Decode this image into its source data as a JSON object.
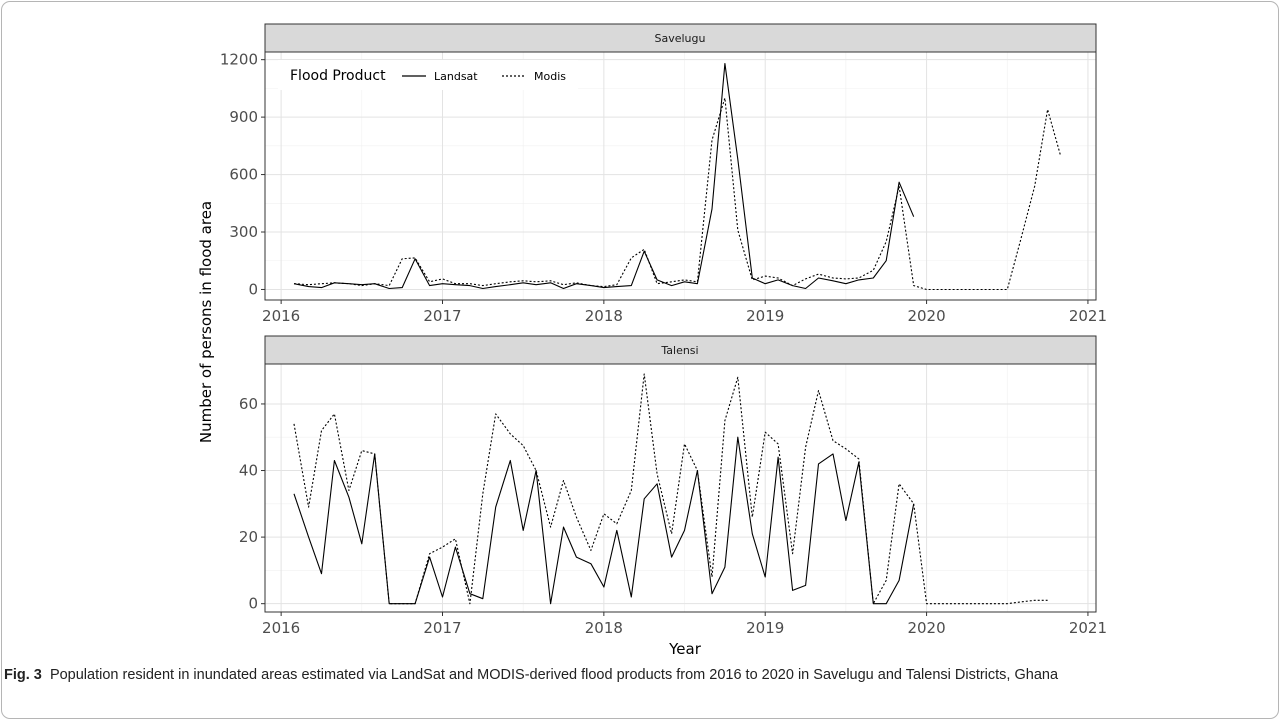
{
  "chart_data": {
    "type": "line",
    "xlabel": "Year",
    "ylabel": "Number of persons in flood area",
    "x_ticks": [
      "2016",
      "2017",
      "2018",
      "2019",
      "2020",
      "2021"
    ],
    "xlim": [
      2015.9,
      2021.05
    ],
    "legend": {
      "title": "Flood Product",
      "placement": "top-left inside first panel",
      "entries": [
        {
          "name": "Landsat",
          "linestyle": "solid"
        },
        {
          "name": "Modis",
          "linestyle": "dotted"
        }
      ]
    },
    "panels": [
      {
        "strip": "Savelugu",
        "ylim": [
          -55,
          1240
        ],
        "y_ticks": [
          0,
          300,
          600,
          900,
          1200
        ],
        "series": [
          {
            "name": "Landsat",
            "style": "solid",
            "points": [
              [
                2016.08,
                30
              ],
              [
                2016.17,
                15
              ],
              [
                2016.25,
                10
              ],
              [
                2016.33,
                35
              ],
              [
                2016.42,
                30
              ],
              [
                2016.5,
                25
              ],
              [
                2016.58,
                30
              ],
              [
                2016.67,
                5
              ],
              [
                2016.75,
                10
              ],
              [
                2016.83,
                160
              ],
              [
                2016.92,
                20
              ],
              [
                2017.0,
                30
              ],
              [
                2017.08,
                25
              ],
              [
                2017.17,
                20
              ],
              [
                2017.25,
                5
              ],
              [
                2017.33,
                15
              ],
              [
                2017.42,
                25
              ],
              [
                2017.5,
                35
              ],
              [
                2017.58,
                25
              ],
              [
                2017.67,
                35
              ],
              [
                2017.75,
                5
              ],
              [
                2017.83,
                30
              ],
              [
                2017.92,
                20
              ],
              [
                2018.0,
                10
              ],
              [
                2018.08,
                15
              ],
              [
                2018.17,
                20
              ],
              [
                2018.25,
                200
              ],
              [
                2018.33,
                50
              ],
              [
                2018.42,
                20
              ],
              [
                2018.5,
                40
              ],
              [
                2018.58,
                30
              ],
              [
                2018.67,
                420
              ],
              [
                2018.75,
                1180
              ],
              [
                2018.83,
                680
              ],
              [
                2018.92,
                60
              ],
              [
                2019.0,
                30
              ],
              [
                2019.08,
                50
              ],
              [
                2019.17,
                20
              ],
              [
                2019.25,
                5
              ],
              [
                2019.33,
                60
              ],
              [
                2019.42,
                45
              ],
              [
                2019.5,
                30
              ],
              [
                2019.58,
                50
              ],
              [
                2019.67,
                60
              ],
              [
                2019.75,
                150
              ],
              [
                2019.83,
                560
              ],
              [
                2019.92,
                380
              ]
            ]
          },
          {
            "name": "Modis",
            "style": "dotted",
            "points": [
              [
                2016.08,
                30
              ],
              [
                2016.17,
                25
              ],
              [
                2016.25,
                30
              ],
              [
                2016.33,
                35
              ],
              [
                2016.42,
                30
              ],
              [
                2016.5,
                20
              ],
              [
                2016.58,
                30
              ],
              [
                2016.67,
                20
              ],
              [
                2016.75,
                160
              ],
              [
                2016.83,
                165
              ],
              [
                2016.92,
                40
              ],
              [
                2017.0,
                55
              ],
              [
                2017.08,
                30
              ],
              [
                2017.17,
                30
              ],
              [
                2017.25,
                20
              ],
              [
                2017.33,
                30
              ],
              [
                2017.42,
                40
              ],
              [
                2017.5,
                45
              ],
              [
                2017.58,
                40
              ],
              [
                2017.67,
                45
              ],
              [
                2017.75,
                25
              ],
              [
                2017.83,
                35
              ],
              [
                2017.92,
                20
              ],
              [
                2018.0,
                15
              ],
              [
                2018.08,
                25
              ],
              [
                2018.17,
                165
              ],
              [
                2018.25,
                210
              ],
              [
                2018.33,
                30
              ],
              [
                2018.42,
                40
              ],
              [
                2018.5,
                50
              ],
              [
                2018.58,
                40
              ],
              [
                2018.67,
                780
              ],
              [
                2018.75,
                1000
              ],
              [
                2018.83,
                310
              ],
              [
                2018.92,
                50
              ],
              [
                2019.0,
                70
              ],
              [
                2019.08,
                60
              ],
              [
                2019.17,
                20
              ],
              [
                2019.25,
                55
              ],
              [
                2019.33,
                80
              ],
              [
                2019.42,
                60
              ],
              [
                2019.5,
                55
              ],
              [
                2019.58,
                60
              ],
              [
                2019.67,
                100
              ],
              [
                2019.75,
                250
              ],
              [
                2019.83,
                540
              ],
              [
                2019.92,
                20
              ],
              [
                2020.0,
                0
              ],
              [
                2020.08,
                0
              ],
              [
                2020.17,
                0
              ],
              [
                2020.25,
                0
              ],
              [
                2020.33,
                0
              ],
              [
                2020.42,
                0
              ],
              [
                2020.5,
                0
              ],
              [
                2020.58,
                250
              ],
              [
                2020.67,
                540
              ],
              [
                2020.75,
                940
              ],
              [
                2020.83,
                700
              ]
            ]
          }
        ]
      },
      {
        "strip": "Talensi",
        "ylim": [
          -2.5,
          72
        ],
        "y_ticks": [
          0,
          20,
          40,
          60
        ],
        "series": [
          {
            "name": "Landsat",
            "style": "solid",
            "points": [
              [
                2016.08,
                33
              ],
              [
                2016.17,
                20
              ],
              [
                2016.25,
                9
              ],
              [
                2016.33,
                43
              ],
              [
                2016.42,
                32
              ],
              [
                2016.5,
                18
              ],
              [
                2016.58,
                45
              ],
              [
                2016.67,
                0
              ],
              [
                2016.75,
                0
              ],
              [
                2016.83,
                0
              ],
              [
                2016.92,
                14
              ],
              [
                2017.0,
                2
              ],
              [
                2017.08,
                17
              ],
              [
                2017.17,
                3
              ],
              [
                2017.25,
                1.5
              ],
              [
                2017.33,
                29
              ],
              [
                2017.42,
                43
              ],
              [
                2017.5,
                22
              ],
              [
                2017.58,
                40
              ],
              [
                2017.67,
                0
              ],
              [
                2017.75,
                23
              ],
              [
                2017.83,
                14
              ],
              [
                2017.92,
                12
              ],
              [
                2018.0,
                5
              ],
              [
                2018.08,
                22
              ],
              [
                2018.17,
                2
              ],
              [
                2018.25,
                31.5
              ],
              [
                2018.33,
                36
              ],
              [
                2018.42,
                14
              ],
              [
                2018.5,
                22
              ],
              [
                2018.58,
                40
              ],
              [
                2018.67,
                3
              ],
              [
                2018.75,
                11
              ],
              [
                2018.83,
                50
              ],
              [
                2018.92,
                21
              ],
              [
                2019.0,
                8
              ],
              [
                2019.08,
                44
              ],
              [
                2019.17,
                4
              ],
              [
                2019.25,
                5.5
              ],
              [
                2019.33,
                42
              ],
              [
                2019.42,
                45
              ],
              [
                2019.5,
                25
              ],
              [
                2019.58,
                42.5
              ],
              [
                2019.67,
                0
              ],
              [
                2019.75,
                0
              ],
              [
                2019.83,
                7
              ],
              [
                2019.92,
                30
              ]
            ]
          },
          {
            "name": "Modis",
            "style": "dotted",
            "points": [
              [
                2016.08,
                54
              ],
              [
                2016.17,
                29
              ],
              [
                2016.25,
                52
              ],
              [
                2016.33,
                57
              ],
              [
                2016.42,
                34
              ],
              [
                2016.5,
                46
              ],
              [
                2016.58,
                45
              ],
              [
                2016.67,
                0
              ],
              [
                2016.75,
                0
              ],
              [
                2016.83,
                0
              ],
              [
                2016.92,
                15
              ],
              [
                2017.0,
                17
              ],
              [
                2017.08,
                19.5
              ],
              [
                2017.17,
                0
              ],
              [
                2017.25,
                33
              ],
              [
                2017.33,
                57
              ],
              [
                2017.42,
                51
              ],
              [
                2017.5,
                47.5
              ],
              [
                2017.58,
                40
              ],
              [
                2017.67,
                23
              ],
              [
                2017.75,
                37
              ],
              [
                2017.83,
                26
              ],
              [
                2017.92,
                16
              ],
              [
                2018.0,
                27
              ],
              [
                2018.08,
                24
              ],
              [
                2018.17,
                34
              ],
              [
                2018.25,
                69
              ],
              [
                2018.33,
                39
              ],
              [
                2018.42,
                21
              ],
              [
                2018.5,
                48
              ],
              [
                2018.58,
                40
              ],
              [
                2018.67,
                8
              ],
              [
                2018.75,
                55
              ],
              [
                2018.83,
                68
              ],
              [
                2018.92,
                26
              ],
              [
                2019.0,
                51.5
              ],
              [
                2019.08,
                48
              ],
              [
                2019.17,
                15
              ],
              [
                2019.25,
                47
              ],
              [
                2019.33,
                64
              ],
              [
                2019.42,
                49
              ],
              [
                2019.5,
                46.5
              ],
              [
                2019.58,
                43.5
              ],
              [
                2019.67,
                0
              ],
              [
                2019.75,
                7
              ],
              [
                2019.83,
                36
              ],
              [
                2019.92,
                30
              ],
              [
                2020.0,
                0
              ],
              [
                2020.08,
                0
              ],
              [
                2020.17,
                0
              ],
              [
                2020.25,
                0
              ],
              [
                2020.33,
                0
              ],
              [
                2020.42,
                0
              ],
              [
                2020.5,
                0
              ],
              [
                2020.58,
                0.5
              ],
              [
                2020.67,
                1
              ],
              [
                2020.75,
                1
              ]
            ]
          }
        ]
      }
    ]
  },
  "caption": {
    "label": "Fig. 3",
    "text": "Population resident in inundated areas estimated via LandSat and MODIS-derived flood products from 2016 to 2020 in Savelugu and Talensi Districts, Ghana"
  }
}
